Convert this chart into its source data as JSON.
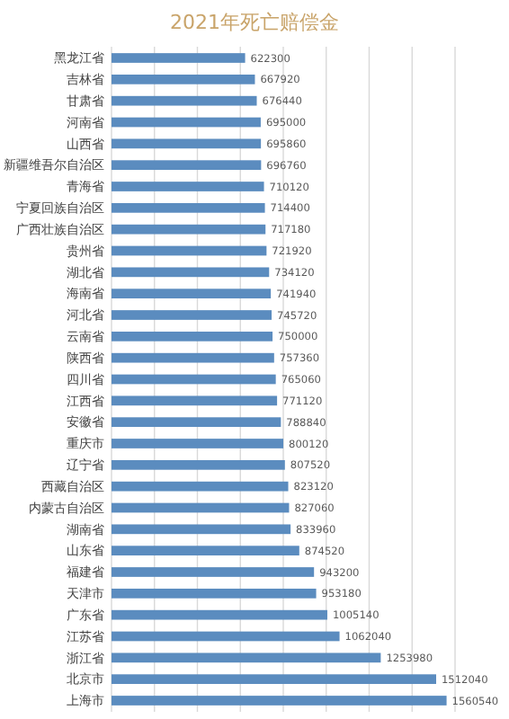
{
  "chart_data": {
    "type": "bar",
    "orientation": "horizontal",
    "title": "2021年死亡赔偿金",
    "categories": [
      "黑龙江省",
      "吉林省",
      "甘肃省",
      "河南省",
      "山西省",
      "新疆维吾尔自治区",
      "青海省",
      "宁夏回族自治区",
      "广西壮族自治区",
      "贵州省",
      "湖北省",
      "海南省",
      "河北省",
      "云南省",
      "陕西省",
      "四川省",
      "江西省",
      "安徽省",
      "重庆市",
      "辽宁省",
      "西藏自治区",
      "内蒙古自治区",
      "湖南省",
      "山东省",
      "福建省",
      "天津市",
      "广东省",
      "江苏省",
      "浙江省",
      "北京市",
      "上海市"
    ],
    "values": [
      622300,
      667920,
      676440,
      695000,
      695860,
      696760,
      710120,
      714400,
      717180,
      721920,
      734120,
      741940,
      745720,
      750000,
      757360,
      765060,
      771120,
      788840,
      800120,
      807520,
      823120,
      827060,
      833960,
      874520,
      943200,
      953180,
      1005140,
      1062040,
      1253980,
      1512040,
      1560540
    ],
    "color": "#5b8cbf",
    "xlim": [
      0,
      1600000
    ],
    "xticks": [
      {
        "value": 0,
        "label": null
      },
      {
        "value": 200000,
        "label": null
      },
      {
        "value": 400000,
        "label": null
      },
      {
        "value": 600000,
        "label": null
      },
      {
        "value": 800000,
        "label": null
      },
      {
        "value": 1000000,
        "label": null
      },
      {
        "value": 1200000,
        "label": null
      },
      {
        "value": 1400000,
        "label": null
      },
      {
        "value": 1600000,
        "label": null
      }
    ],
    "grid": "x",
    "data_labels": true,
    "tick_labels": "y"
  }
}
